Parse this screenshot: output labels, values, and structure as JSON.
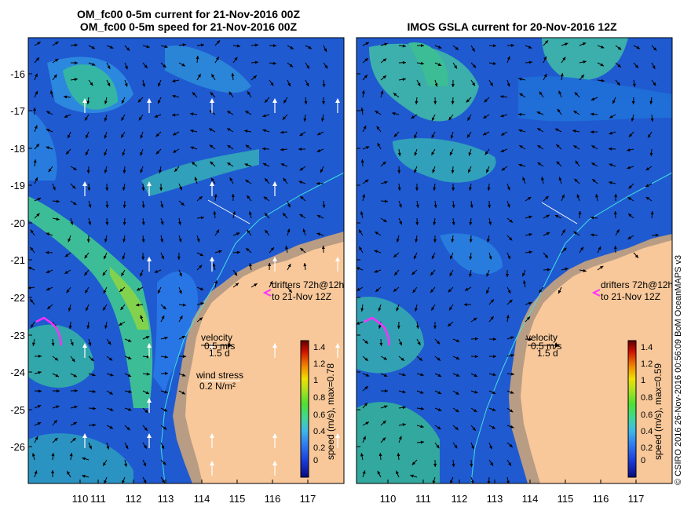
{
  "left_panel": {
    "title_line1": "OM_fc00 0-5m current for 21-Nov-2016 00Z",
    "title_line2": "OM_fc00 0-5m speed for 21-Nov-2016 00Z",
    "colorbar_label": "speed (m/s), max=0.78",
    "wind_label": "wind stress",
    "wind_value": "0.2 N/m²"
  },
  "right_panel": {
    "title": "IMOS GSLA current for 20-Nov-2016 12Z",
    "colorbar_label": "speed (m/s), max=0.59"
  },
  "legend": {
    "drifters_line1": "drifters 72h@12h",
    "drifters_line2": "to 21-Nov 12Z",
    "velocity_label": "velocity",
    "velocity_value": "0.5 m/s",
    "velocity_time": "1.5 d"
  },
  "axes": {
    "y_ticks": [
      "-16",
      "-17",
      "-18",
      "-19",
      "-20",
      "-21",
      "-22",
      "-23",
      "-24",
      "-25",
      "-26"
    ],
    "x_ticks": [
      "110",
      "111",
      "112",
      "113",
      "114",
      "115",
      "116",
      "117"
    ]
  },
  "colorbar": {
    "tick_labels": [
      "1.4",
      "1.2",
      "1",
      "0.8",
      "0.6",
      "0.4",
      "0.2",
      "0"
    ],
    "colors": [
      "#0a0a80",
      "#1a3cd8",
      "#2f7df0",
      "#3fb8e8",
      "#40d890",
      "#50e030",
      "#b0e020",
      "#f0e000",
      "#f08000",
      "#d01000",
      "#600000"
    ]
  },
  "colors": {
    "land": "#f8c89a",
    "shelf_land": "#b89c84",
    "deep_ocean": "#1f5ad0",
    "mid_ocean": "#2a78ea",
    "current_fast": "#40c890",
    "drifter_track": "#ff30ff",
    "wind_arrows": "#ffffff",
    "coast_line": "#40e0e0"
  },
  "credit": "© CSIRO 2016   26-Nov-2016 00:56:09 BoM OceanMAPS v3"
}
